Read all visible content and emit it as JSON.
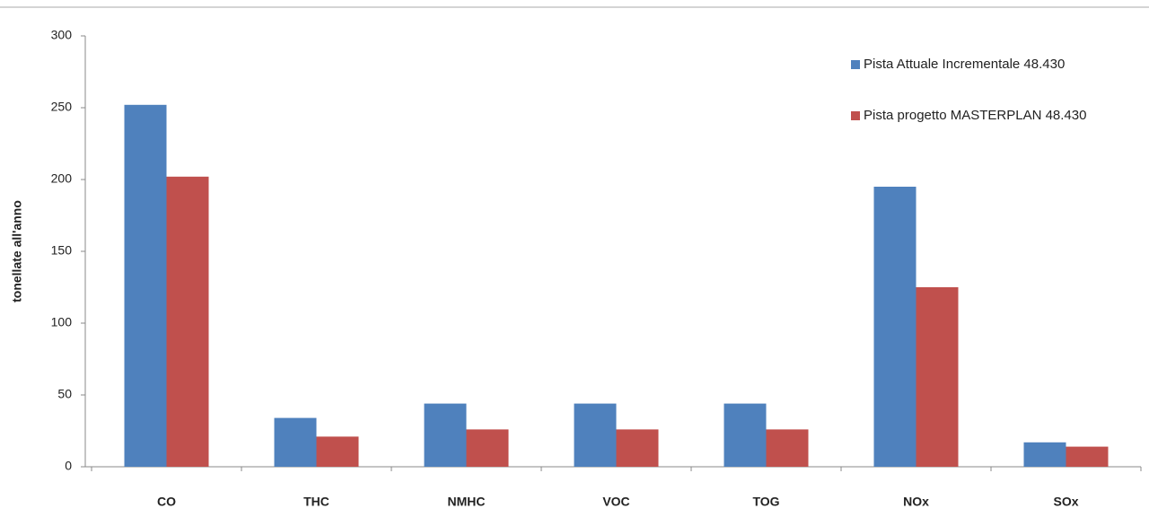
{
  "chart_data": {
    "type": "bar",
    "y_label": "tonellate all'anno",
    "categories": [
      "CO",
      "THC",
      "NMHC",
      "VOC",
      "TOG",
      "NOx",
      "SOx"
    ],
    "series": [
      {
        "name": "Pista Attuale Incrementale 48.430",
        "color": "#4f81bd",
        "values": [
          252,
          34,
          44,
          44,
          44,
          195,
          17
        ]
      },
      {
        "name": "Pista progetto MASTERPLAN 48.430",
        "color": "#c0504d",
        "values": [
          202,
          21,
          26,
          26,
          26,
          125,
          14
        ]
      }
    ],
    "ylim": [
      0,
      300
    ],
    "yticks": [
      0,
      50,
      100,
      150,
      200,
      250,
      300
    ],
    "grid": false,
    "legend": "right"
  }
}
